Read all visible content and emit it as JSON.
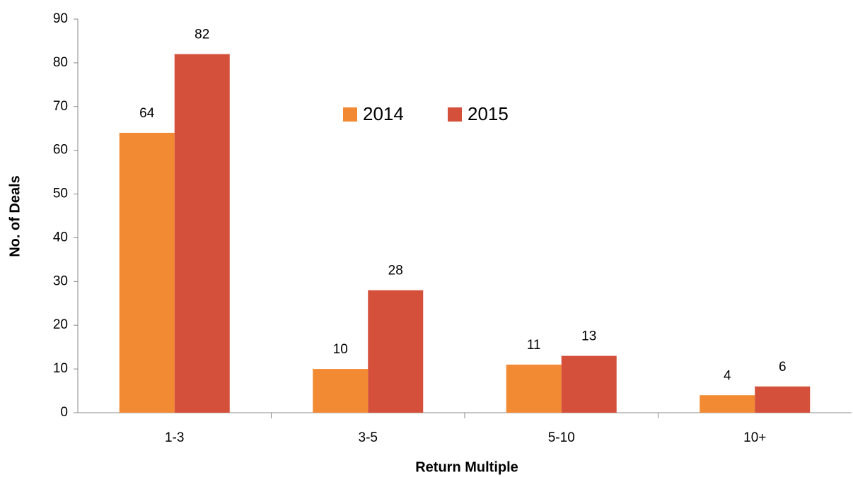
{
  "chart_data": {
    "type": "bar",
    "xlabel": "Return Multiple",
    "ylabel": "No. of Deals",
    "categories": [
      "1-3",
      "3-5",
      "5-10",
      "10+"
    ],
    "series": [
      {
        "name": "2014",
        "color": "#f28a33",
        "values": [
          64,
          10,
          11,
          4
        ]
      },
      {
        "name": "2015",
        "color": "#d4503b",
        "values": [
          82,
          28,
          13,
          6
        ]
      }
    ],
    "ylim": [
      0,
      90
    ],
    "yticks": [
      0,
      10,
      20,
      30,
      40,
      50,
      60,
      70,
      80,
      90
    ],
    "grid": false,
    "legend": "top"
  }
}
